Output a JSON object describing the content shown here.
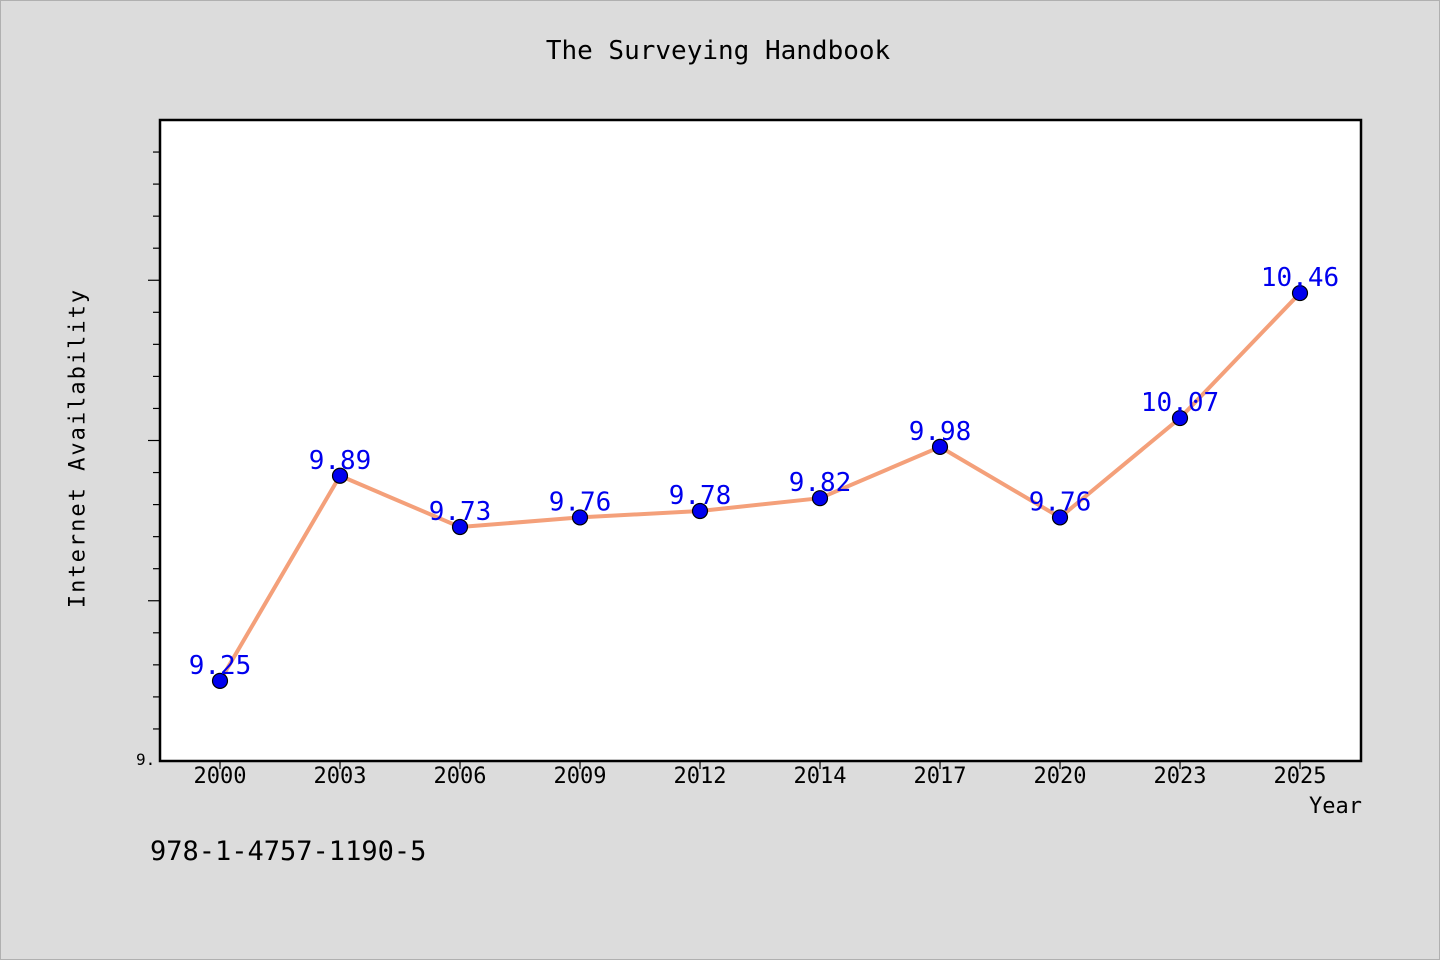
{
  "chart_data": {
    "type": "line",
    "title": "The Surveying Handbook",
    "xlabel": "Year",
    "ylabel": "Internet Availability",
    "categories": [
      "2000",
      "2003",
      "2006",
      "2009",
      "2012",
      "2014",
      "2017",
      "2020",
      "2023",
      "2025"
    ],
    "series": [
      {
        "values": [
          9.25,
          9.89,
          9.73,
          9.76,
          9.78,
          9.82,
          9.98,
          9.76,
          10.07,
          10.46
        ]
      }
    ],
    "data_labels": [
      "9.25",
      "9.89",
      "9.73",
      "9.76",
      "9.78",
      "9.82",
      "9.98",
      "9.76",
      "10.07",
      "10.46"
    ],
    "ylim": [
      9.0,
      11.0
    ],
    "y_tick_label": "9.",
    "grid": false,
    "line_color": "#f4a07a",
    "marker_color": "#0000ee",
    "label_color": "#0000ee"
  },
  "footnote": "978-1-4757-1190-5"
}
